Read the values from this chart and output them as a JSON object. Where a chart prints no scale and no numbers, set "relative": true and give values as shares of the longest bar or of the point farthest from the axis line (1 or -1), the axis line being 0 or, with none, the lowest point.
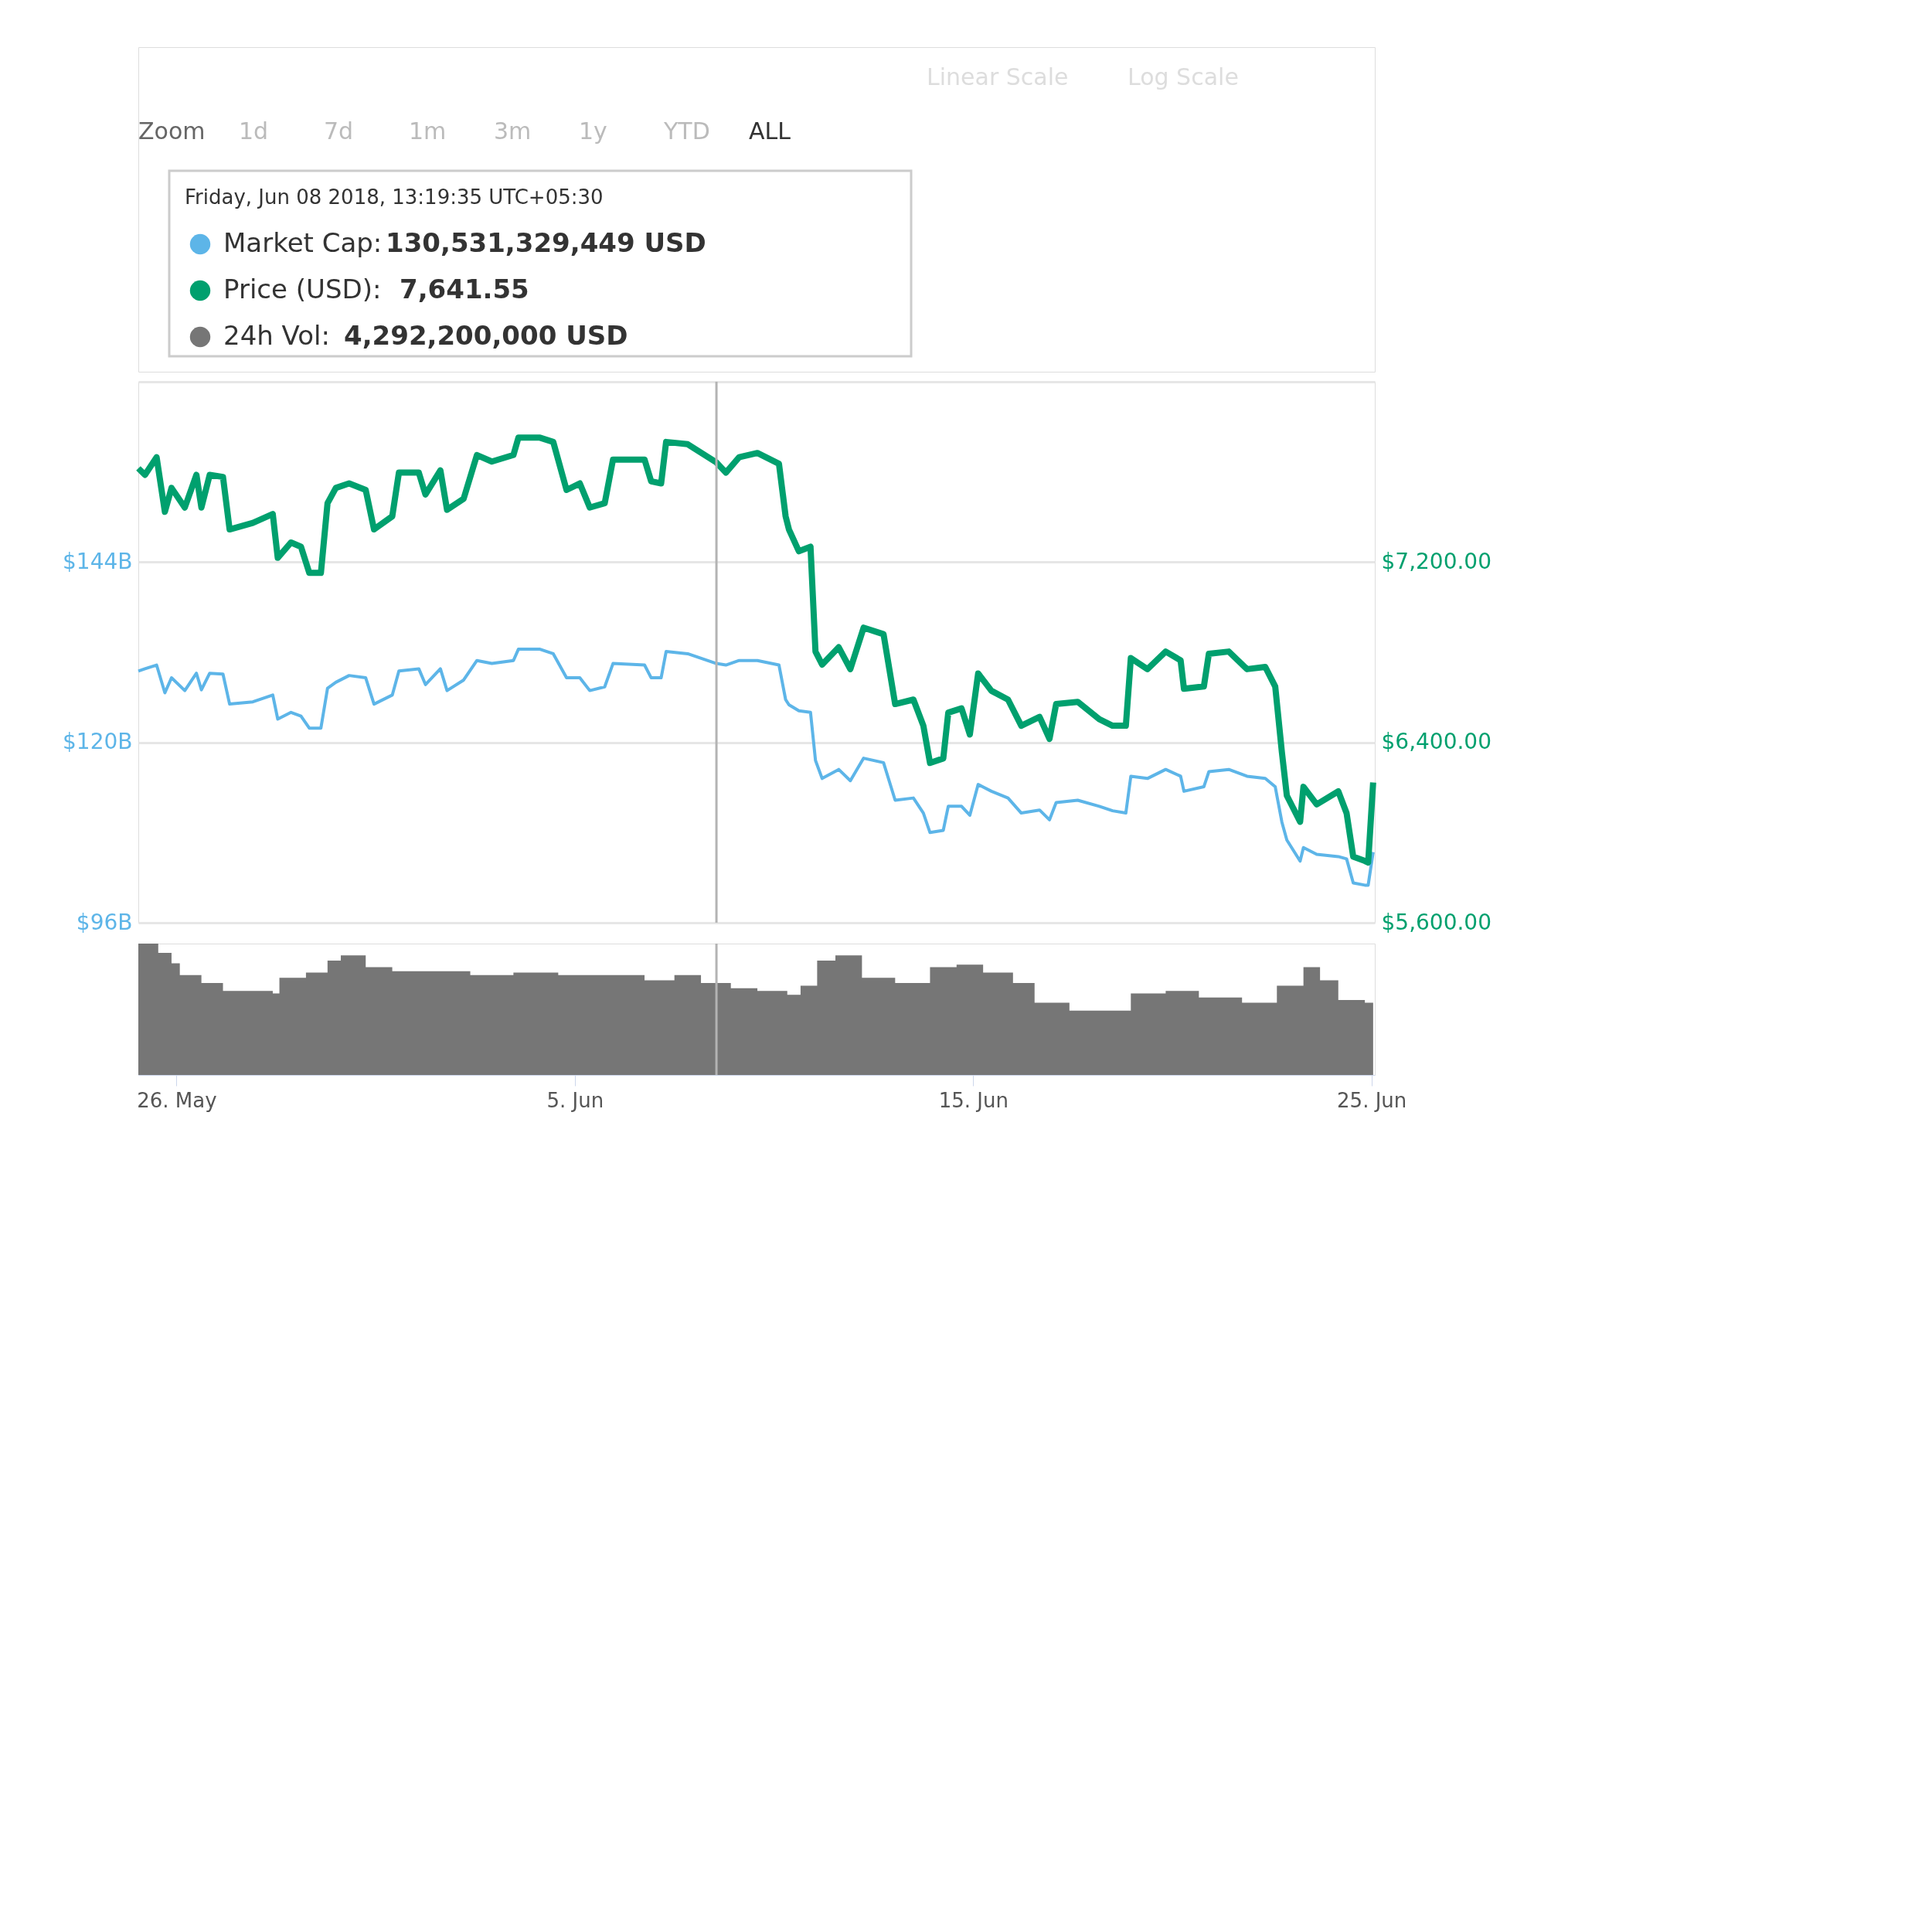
{
  "chart_data": [
    {
      "type": "line",
      "annotations": [
        "Linear Scale",
        "Log Scale",
        "Zoom",
        "1d",
        "7d",
        "1m",
        "3m",
        "1y",
        "YTD",
        "ALL",
        "Friday, Jun 08 2018, 13:19:35 UTC+05:30",
        "130,531,329,449 USD",
        "7,641.55",
        "4,292,200,000 USD"
      ],
      "x": [
        "2018-05-25T01:00",
        "2018-05-25T05:00",
        "2018-05-25T12:00",
        "2018-05-25T17:00",
        "2018-05-25T21:00",
        "2018-05-26T05:00",
        "2018-05-26T12:00",
        "2018-05-26T15:00",
        "2018-05-26T20:00",
        "2018-05-27T04:00",
        "2018-05-27T08:00",
        "2018-05-27T22:00",
        "2018-05-28T10:00",
        "2018-05-28T13:00",
        "2018-05-28T21:00",
        "2018-05-29T03:00",
        "2018-05-29T08:00",
        "2018-05-29T15:00",
        "2018-05-29T19:00",
        "2018-05-30T00:00",
        "2018-05-30T08:00",
        "2018-05-30T18:00",
        "2018-05-30T23:00",
        "2018-05-31T10:00",
        "2018-05-31T14:00",
        "2018-06-01T02:00",
        "2018-06-01T06:00",
        "2018-06-01T15:00",
        "2018-06-01T19:00",
        "2018-06-02T05:00",
        "2018-06-02T13:00",
        "2018-06-02T22:00",
        "2018-06-03T11:00",
        "2018-06-03T14:00",
        "2018-06-04T03:00",
        "2018-06-04T11:00",
        "2018-06-04T19:00",
        "2018-06-05T03:00",
        "2018-06-05T09:00",
        "2018-06-05T18:00",
        "2018-06-05T23:00",
        "2018-06-06T18:00",
        "2018-06-06T22:00",
        "2018-06-07T04:00",
        "2018-06-07T07:00",
        "2018-06-07T20:00",
        "2018-06-08T13:19",
        "2018-06-08T19:00",
        "2018-06-09T03:00",
        "2018-06-09T14:00",
        "2018-06-10T03:00",
        "2018-06-10T07:00",
        "2018-06-10T09:00",
        "2018-06-10T15:00",
        "2018-06-10T22:00",
        "2018-06-11T01:00",
        "2018-06-11T05:00",
        "2018-06-11T15:00",
        "2018-06-11T22:00",
        "2018-06-12T06:00",
        "2018-06-12T18:00",
        "2018-06-13T01:00",
        "2018-06-13T12:00",
        "2018-06-13T18:00",
        "2018-06-13T22:00",
        "2018-06-14T06:00",
        "2018-06-14T09:00",
        "2018-06-14T17:00",
        "2018-06-14T22:00",
        "2018-06-15T03:00",
        "2018-06-15T11:00",
        "2018-06-15T21:00",
        "2018-06-16T05:00",
        "2018-06-16T16:00",
        "2018-06-16T22:00",
        "2018-06-17T02:00",
        "2018-06-17T15:00",
        "2018-06-18T04:00",
        "2018-06-18T12:00",
        "2018-06-18T20:00",
        "2018-06-18T23:00",
        "2018-06-19T09:00",
        "2018-06-19T20:00",
        "2018-06-20T05:00",
        "2018-06-20T07:00",
        "2018-06-20T19:00",
        "2018-06-20T22:00",
        "2018-06-21T10:00",
        "2018-06-21T21:00",
        "2018-06-22T08:00",
        "2018-06-22T14:00",
        "2018-06-22T18:00",
        "2018-06-22T21:00",
        "2018-06-23T05:00",
        "2018-06-23T07:00",
        "2018-06-23T15:00",
        "2018-06-24T04:00",
        "2018-06-24T09:00",
        "2018-06-24T13:00",
        "2018-06-24T20:00",
        "2018-06-24T22:00",
        "2018-06-25T01:00"
      ],
      "series": [
        {
          "name": "Market Cap:",
          "color": "#5db5e8",
          "values": [
            129.5,
            129.8,
            130.3,
            126.6,
            128.6,
            126.9,
            129.2,
            127.0,
            129.2,
            129.1,
            125.1,
            125.4,
            126.3,
            123.1,
            124.0,
            123.5,
            121.9,
            121.9,
            127.2,
            128.0,
            128.9,
            128.6,
            125.1,
            126.3,
            129.5,
            129.8,
            127.7,
            129.8,
            126.9,
            128.3,
            130.9,
            130.5,
            130.9,
            132.4,
            132.4,
            131.8,
            128.6,
            128.6,
            126.9,
            127.4,
            130.5,
            130.3,
            128.6,
            128.6,
            132.1,
            131.8,
            130.5,
            130.3,
            130.9,
            130.9,
            130.3,
            125.7,
            125.0,
            124.2,
            124.0,
            117.6,
            115.2,
            116.4,
            114.9,
            117.9,
            117.3,
            112.3,
            112.6,
            110.6,
            108.0,
            108.3,
            111.5,
            111.5,
            110.3,
            114.4,
            113.5,
            112.6,
            110.6,
            111.0,
            109.7,
            112.0,
            112.3,
            111.5,
            110.9,
            110.6,
            115.5,
            115.2,
            116.4,
            115.5,
            113.5,
            114.1,
            116.1,
            116.4,
            115.5,
            115.2,
            114.1,
            109.4,
            107.0,
            104.2,
            106.0,
            105.1,
            104.8,
            104.5,
            101.3,
            101.0,
            101.0,
            105.4
          ]
        },
        {
          "name": "Price (USD):",
          "color": "#00a06e",
          "axis": "y2",
          "values": [
            7616,
            7587,
            7665,
            7423,
            7529,
            7442,
            7587,
            7442,
            7587,
            7578,
            7345,
            7374,
            7413,
            7219,
            7287,
            7268,
            7152,
            7152,
            7461,
            7529,
            7549,
            7520,
            7345,
            7403,
            7597,
            7597,
            7500,
            7607,
            7432,
            7481,
            7675,
            7646,
            7675,
            7752,
            7752,
            7733,
            7520,
            7549,
            7442,
            7461,
            7655,
            7655,
            7558,
            7549,
            7733,
            7723,
            7642,
            7597,
            7665,
            7684,
            7636,
            7403,
            7345,
            7248,
            7268,
            6803,
            6745,
            6822,
            6725,
            6909,
            6880,
            6570,
            6590,
            6474,
            6309,
            6329,
            6532,
            6551,
            6435,
            6706,
            6629,
            6590,
            6474,
            6513,
            6416,
            6570,
            6580,
            6503,
            6474,
            6474,
            6774,
            6725,
            6803,
            6764,
            6638,
            6648,
            6793,
            6803,
            6725,
            6735,
            6648,
            6357,
            6164,
            6048,
            6203,
            6125,
            6183,
            6086,
            5893,
            5874,
            5867,
            6222
          ]
        }
      ],
      "xlim": [
        "2018-05-25T01:00",
        "2018-06-25T02:00"
      ],
      "ylim": [
        96,
        168
      ],
      "yticks": [
        {
          "value": 96,
          "label": "$96B"
        },
        {
          "value": 120,
          "label": "$120B"
        },
        {
          "value": 144,
          "label": "$144B"
        },
        {
          "value": 168,
          "label": null
        }
      ],
      "y2lim": [
        5600,
        8000
      ],
      "y2ticks": [
        {
          "value": 5600,
          "label": "$5,600.00"
        },
        {
          "value": 6400,
          "label": "$6,400.00"
        },
        {
          "value": 7200,
          "label": "$7,200.00"
        },
        {
          "value": 8000,
          "label": null
        }
      ],
      "grid": "y",
      "legend": "top left",
      "tick_labels": "y",
      "xticks": [
        {
          "value": "2018-05-26",
          "label": null
        },
        {
          "value": "2018-06-05",
          "label": null
        },
        {
          "value": "2018-06-15",
          "label": null
        },
        {
          "value": "2018-06-25",
          "label": null
        }
      ],
      "ref_lines": [
        {
          "axis": "x",
          "value": "2018-06-08T13:19",
          "color": "#b3b3b3"
        }
      ]
    },
    {
      "type": "area",
      "relative": true,
      "x": [
        "2018-05-25T01:00",
        "2018-05-25T13:00",
        "2018-05-25T21:00",
        "2018-05-26T02:00",
        "2018-05-26T15:00",
        "2018-05-27T04:00",
        "2018-05-27T22:00",
        "2018-05-28T10:00",
        "2018-05-28T14:00",
        "2018-05-29T06:00",
        "2018-05-29T19:00",
        "2018-05-30T03:00",
        "2018-05-30T18:00",
        "2018-05-31T10:00",
        "2018-06-01T07:00",
        "2018-06-02T09:00",
        "2018-06-03T11:00",
        "2018-06-04T14:00",
        "2018-06-05T23:00",
        "2018-06-06T18:00",
        "2018-06-07T12:00",
        "2018-06-08T04:00",
        "2018-06-08T22:00",
        "2018-06-09T14:00",
        "2018-06-10T08:00",
        "2018-06-10T16:00",
        "2018-06-11T02:00",
        "2018-06-11T13:00",
        "2018-06-12T05:00",
        "2018-06-13T01:00",
        "2018-06-13T22:00",
        "2018-06-14T14:00",
        "2018-06-15T06:00",
        "2018-06-16T00:00",
        "2018-06-16T13:00",
        "2018-06-17T10:00",
        "2018-06-18T07:00",
        "2018-06-18T23:00",
        "2018-06-19T20:00",
        "2018-06-20T16:00",
        "2018-06-21T18:00",
        "2018-06-22T15:00",
        "2018-06-23T07:00",
        "2018-06-23T17:00",
        "2018-06-24T04:00",
        "2018-06-24T20:00",
        "2018-06-25T01:00"
      ],
      "series": [
        {
          "name": "24h Vol:",
          "color": "#767676",
          "values": [
            1.0,
            0.93,
            0.85,
            0.76,
            0.7,
            0.64,
            0.64,
            0.62,
            0.74,
            0.78,
            0.87,
            0.91,
            0.82,
            0.79,
            0.79,
            0.76,
            0.78,
            0.76,
            0.76,
            0.72,
            0.76,
            0.7,
            0.66,
            0.64,
            0.61,
            0.68,
            0.87,
            0.91,
            0.74,
            0.7,
            0.82,
            0.84,
            0.78,
            0.7,
            0.55,
            0.49,
            0.49,
            0.62,
            0.64,
            0.59,
            0.55,
            0.68,
            0.82,
            0.72,
            0.57,
            0.55,
            0.7
          ]
        }
      ],
      "xlim": [
        "2018-05-25T01:00",
        "2018-06-25T02:00"
      ],
      "xticks": [
        {
          "value": "2018-05-26",
          "label": "26. May"
        },
        {
          "value": "2018-06-05",
          "label": "5. Jun"
        },
        {
          "value": "2018-06-15",
          "label": "15. Jun"
        },
        {
          "value": "2018-06-25",
          "label": "25. Jun"
        }
      ],
      "tick_labels": "x",
      "ref_lines": [
        {
          "axis": "x",
          "value": "2018-06-08T13:19",
          "color": "#b3b3b3"
        }
      ]
    }
  ]
}
